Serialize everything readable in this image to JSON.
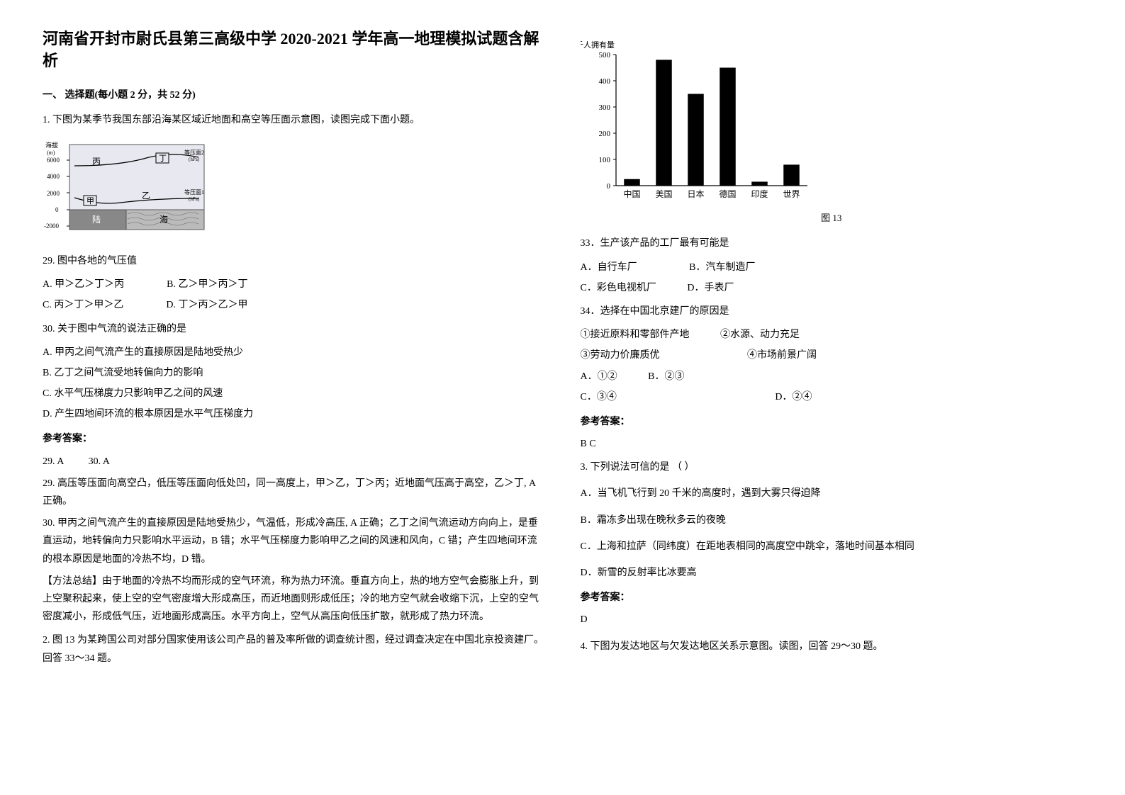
{
  "title": "河南省开封市尉氏县第三高级中学 2020-2021 学年高一地理模拟试题含解析",
  "section1": {
    "heading": "一、 选择题(每小题 2 分，共 52 分)"
  },
  "q1": {
    "stem": "1. 下图为某季节我国东部沿海某区域近地面和高空等压面示意图，读图完成下面小题。",
    "figure": {
      "yaxis_label": "海拔\n(m)",
      "y_ticks": [
        "6000",
        "4000",
        "2000",
        "0",
        "-2000"
      ],
      "labels": {
        "bing": "丙",
        "ding": "丁",
        "jia": "甲",
        "yi": "乙"
      },
      "annotations": {
        "surface2": "等压面2\n(hPa)",
        "surface1": "等压面1\n(hPa)"
      },
      "land": "陆",
      "sea": "海",
      "colors": {
        "bg": "#e8e8f0",
        "border": "#555",
        "fill": "#888"
      }
    },
    "sub29": {
      "stem": "29. 图中各地的气压值",
      "A": "A. 甲＞乙＞丁＞丙",
      "B": "B. 乙＞甲＞丙＞丁",
      "C": "C. 丙＞丁＞甲＞乙",
      "D": "D. 丁＞丙＞乙＞甲"
    },
    "sub30": {
      "stem": "30. 关于图中气流的说法正确的是",
      "A": "A. 甲丙之间气流产生的直接原因是陆地受热少",
      "B": "B. 乙丁之间气流受地转偏向力的影响",
      "C": "C. 水平气压梯度力只影响甲乙之间的风速",
      "D": "D. 产生四地间环流的根本原因是水平气压梯度力"
    },
    "answer_label": "参考答案：",
    "answer_line": "29. A          30. A",
    "explanation29": "29. 高压等压面向高空凸，低压等压面向低处凹，同一高度上，甲＞乙，丁＞丙；近地面气压高于高空，乙＞丁, A 正确。",
    "explanation30": "30. 甲丙之间气流产生的直接原因是陆地受热少，气温低，形成冷高压, A 正确；乙丁之间气流运动方向向上，是垂直运动，地转偏向力只影响水平运动，B 错；水平气压梯度力影响甲乙之间的风速和风向，C 错；产生四地间环流的根本原因是地面的冷热不均，D 错。",
    "method": "【方法总结】由于地面的冷热不均而形成的空气环流，称为热力环流。垂直方向上，热的地方空气会膨胀上升，到上空聚积起来，使上空的空气密度增大形成高压，而近地面则形成低压；冷的地方空气就会收缩下沉，上空的空气密度减小，形成低气压，近地面形成高压。水平方向上，空气从高压向低压扩散，就形成了热力环流。"
  },
  "q2": {
    "stem": "2. 图 13 为某跨国公司对部分国家使用该公司产品的普及率所做的调查统计图，经过调查决定在中国北京投资建厂。回答 33～34 题。",
    "chart": {
      "type": "bar",
      "ylabel": "每千人拥有量",
      "ylim": [
        0,
        500
      ],
      "ytick_step": 100,
      "yticks": [
        0,
        100,
        200,
        300,
        400,
        500
      ],
      "categories": [
        "中国",
        "美国",
        "日本",
        "德国",
        "印度",
        "世界"
      ],
      "values": [
        25,
        480,
        350,
        450,
        15,
        80
      ],
      "bar_color": "#000000",
      "background": "#ffffff",
      "axis_color": "#000000",
      "label_fontsize": 12,
      "bar_width": 0.5,
      "caption": "图 13"
    },
    "sub33": {
      "stem": "33．生产该产品的工厂最有可能是",
      "A": "A．自行车厂",
      "B": "B．汽车制造厂",
      "C": "C．彩色电视机厂",
      "D": "D．手表厂"
    },
    "sub34": {
      "stem": "34．选择在中国北京建厂的原因是",
      "cond1": "①接近原料和零部件产地",
      "cond2": "②水源、动力充足",
      "cond3": "③劳动力价廉质优",
      "cond4": "④市场前景广阔",
      "A": "A．①②",
      "B": "B．②③",
      "C": "C．③④",
      "D": "D．②④"
    },
    "answer_label": "参考答案：",
    "answer": "B C"
  },
  "q3": {
    "stem": "3. 下列说法可信的是 （  ）",
    "A": "A．当飞机飞行到 20 千米的高度时，遇到大雾只得迫降",
    "B": "B．霜冻多出现在晚秋多云的夜晚",
    "C": "C．上海和拉萨（同纬度）在距地表相同的高度空中跳伞，落地时间基本相同",
    "D": "D．新雪的反射率比冰要高",
    "answer_label": "参考答案：",
    "answer": "D"
  },
  "q4": {
    "stem": "4. 下图为发达地区与欠发达地区关系示意图。读图，回答 29～30 题。"
  }
}
